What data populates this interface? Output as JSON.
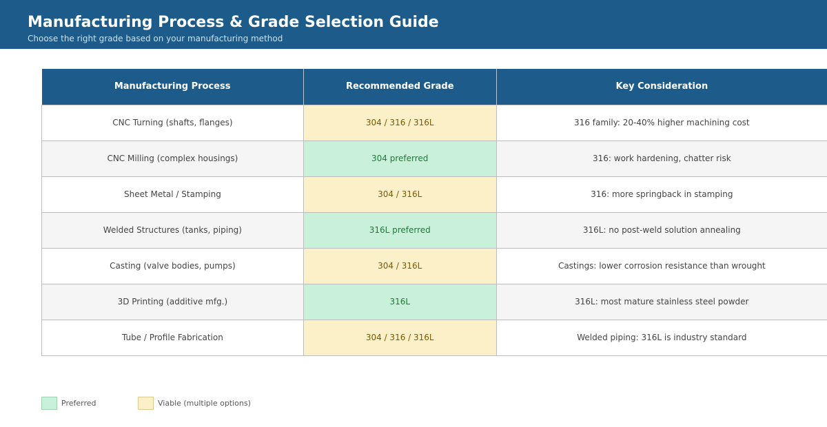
{
  "header": {
    "title": "Manufacturing Process & Grade Selection Guide",
    "subtitle": "Choose the right grade based on your manufacturing method"
  },
  "table": {
    "columns": [
      "Manufacturing Process",
      "Recommended Grade",
      "Key Consideration"
    ],
    "rows": [
      {
        "process": "CNC Turning (shafts, flanges)",
        "grade": "304 / 316 / 316L",
        "grade_type": "viable",
        "consideration": "316 family: 20-40% higher machining cost"
      },
      {
        "process": "CNC Milling (complex housings)",
        "grade": "304 preferred",
        "grade_type": "preferred",
        "consideration": "316: work hardening, chatter risk"
      },
      {
        "process": "Sheet Metal / Stamping",
        "grade": "304 / 316L",
        "grade_type": "viable",
        "consideration": "316: more springback in stamping"
      },
      {
        "process": "Welded Structures (tanks, piping)",
        "grade": "316L preferred",
        "grade_type": "preferred",
        "consideration": "316L: no post-weld solution annealing"
      },
      {
        "process": "Casting (valve bodies, pumps)",
        "grade": "304 / 316L",
        "grade_type": "viable",
        "consideration": "Castings: lower corrosion resistance than wrought"
      },
      {
        "process": "3D Printing (additive mfg.)",
        "grade": "316L",
        "grade_type": "preferred",
        "consideration": "316L: most mature stainless steel powder"
      },
      {
        "process": "Tube / Profile Fabrication",
        "grade": "304 / 316 / 316L",
        "grade_type": "viable",
        "consideration": "Welded piping: 316L is industry standard"
      }
    ]
  },
  "legend": {
    "preferred": "Preferred",
    "viable": "Viable (multiple options)"
  },
  "colors": {
    "header_bg": "#1c5b8a",
    "preferred_bg": "#c9f0d8",
    "preferred_text": "#1f7a3a",
    "viable_bg": "#fcf0c8",
    "viable_text": "#7a5a00"
  }
}
